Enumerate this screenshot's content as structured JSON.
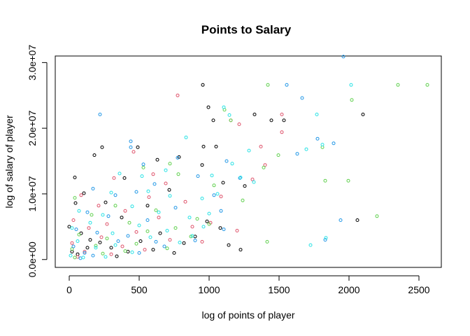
{
  "chart_data": {
    "type": "scatter",
    "title": "Points to Salary",
    "xlabel": "log of points of player",
    "ylabel": "log of salary of player",
    "xlim": [
      -100,
      2660
    ],
    "ylim": [
      -1200000,
      31000000
    ],
    "x_ticks": [
      0,
      500,
      1000,
      1500,
      2000,
      2500
    ],
    "x_tick_labels": [
      "0",
      "500",
      "1000",
      "1500",
      "2000",
      "2500"
    ],
    "y_ticks": [
      0,
      10000000,
      20000000,
      30000000
    ],
    "y_tick_labels": [
      "0.0e+00",
      "1.0e+07",
      "2.0e+07",
      "3.0e+07"
    ],
    "grid": false,
    "legend": "none",
    "point_colors": [
      "#000000",
      "#DF536B",
      "#61D04F",
      "#2297E6",
      "#28E2E5"
    ],
    "points": [
      [
        955,
        26600000,
        0
      ],
      [
        995,
        23200000,
        0
      ],
      [
        1030,
        21200000,
        0
      ],
      [
        1325,
        22100000,
        0
      ],
      [
        1445,
        21200000,
        0
      ],
      [
        1535,
        21200000,
        0
      ],
      [
        2100,
        22100000,
        0
      ],
      [
        235,
        17100000,
        0
      ],
      [
        180,
        15900000,
        0
      ],
      [
        490,
        17100000,
        0
      ],
      [
        960,
        17200000,
        0
      ],
      [
        1050,
        17200000,
        0
      ],
      [
        40,
        12500000,
        0
      ],
      [
        395,
        12400000,
        0
      ],
      [
        630,
        15200000,
        0
      ],
      [
        785,
        15600000,
        0
      ],
      [
        950,
        14400000,
        0
      ],
      [
        1100,
        11700000,
        0
      ],
      [
        1255,
        11200000,
        0
      ],
      [
        2060,
        6000000,
        0
      ],
      [
        45,
        8600000,
        0
      ],
      [
        105,
        10100000,
        0
      ],
      [
        260,
        8700000,
        0
      ],
      [
        375,
        6400000,
        0
      ],
      [
        560,
        8200000,
        0
      ],
      [
        715,
        10600000,
        0
      ],
      [
        1140,
        2200000,
        0
      ],
      [
        1225,
        1500000,
        0
      ],
      [
        0,
        5000000,
        0
      ],
      [
        85,
        4000000,
        0
      ],
      [
        150,
        3000000,
        0
      ],
      [
        220,
        2600000,
        0
      ],
      [
        300,
        1800000,
        0
      ],
      [
        420,
        1200000,
        0
      ],
      [
        600,
        1500000,
        0
      ],
      [
        750,
        1000000,
        0
      ],
      [
        900,
        3500000,
        0
      ],
      [
        20,
        1200000,
        0
      ],
      [
        60,
        800000,
        0
      ],
      [
        130,
        1800000,
        0
      ],
      [
        340,
        500000,
        0
      ],
      [
        510,
        2800000,
        0
      ],
      [
        650,
        4000000,
        0
      ],
      [
        820,
        2500000,
        0
      ],
      [
        985,
        5800000,
        0
      ],
      [
        1080,
        4800000,
        0
      ],
      [
        775,
        25000000,
        1
      ],
      [
        1215,
        20600000,
        1
      ],
      [
        1370,
        17200000,
        1
      ],
      [
        1520,
        22100000,
        1
      ],
      [
        1155,
        21200000,
        1
      ],
      [
        460,
        16400000,
        1
      ],
      [
        600,
        13000000,
        1
      ],
      [
        320,
        12400000,
        1
      ],
      [
        690,
        11600000,
        1
      ],
      [
        1085,
        9600000,
        1
      ],
      [
        1310,
        12200000,
        1
      ],
      [
        1400,
        14400000,
        1
      ],
      [
        1520,
        19400000,
        1
      ],
      [
        85,
        9800000,
        1
      ],
      [
        210,
        8200000,
        1
      ],
      [
        400,
        7400000,
        1
      ],
      [
        570,
        9500000,
        1
      ],
      [
        830,
        8800000,
        1
      ],
      [
        1010,
        5600000,
        1
      ],
      [
        1200,
        4400000,
        1
      ],
      [
        30,
        6000000,
        1
      ],
      [
        140,
        4800000,
        1
      ],
      [
        270,
        5400000,
        1
      ],
      [
        480,
        4200000,
        1
      ],
      [
        640,
        6400000,
        1
      ],
      [
        880,
        5000000,
        1
      ],
      [
        20,
        2500000,
        1
      ],
      [
        110,
        1200000,
        1
      ],
      [
        230,
        3400000,
        1
      ],
      [
        380,
        2000000,
        1
      ],
      [
        540,
        1500000,
        1
      ],
      [
        720,
        3000000,
        1
      ],
      [
        950,
        2700000,
        1
      ],
      [
        60,
        400000,
        1
      ],
      [
        300,
        800000,
        1
      ],
      [
        1420,
        26600000,
        2
      ],
      [
        2020,
        24300000,
        2
      ],
      [
        2350,
        26600000,
        2
      ],
      [
        2560,
        26600000,
        2
      ],
      [
        1110,
        22800000,
        2
      ],
      [
        1155,
        21200000,
        2
      ],
      [
        1390,
        14000000,
        2
      ],
      [
        1495,
        15900000,
        2
      ],
      [
        1810,
        17100000,
        2
      ],
      [
        1830,
        12000000,
        2
      ],
      [
        1995,
        12000000,
        2
      ],
      [
        2200,
        6600000,
        2
      ],
      [
        1415,
        2700000,
        2
      ],
      [
        1035,
        11300000,
        2
      ],
      [
        1240,
        9000000,
        2
      ],
      [
        720,
        14600000,
        2
      ],
      [
        530,
        14000000,
        2
      ],
      [
        780,
        13000000,
        2
      ],
      [
        40,
        9400000,
        2
      ],
      [
        330,
        8200000,
        2
      ],
      [
        620,
        7500000,
        2
      ],
      [
        915,
        6200000,
        2
      ],
      [
        1000,
        5400000,
        2
      ],
      [
        160,
        6800000,
        2
      ],
      [
        430,
        5600000,
        2
      ],
      [
        70,
        3800000,
        2
      ],
      [
        270,
        3200000,
        2
      ],
      [
        560,
        4300000,
        2
      ],
      [
        760,
        4800000,
        2
      ],
      [
        870,
        3500000,
        2
      ],
      [
        20,
        1600000,
        2
      ],
      [
        190,
        2100000,
        2
      ],
      [
        400,
        1300000,
        2
      ],
      [
        480,
        2400000,
        2
      ],
      [
        700,
        1700000,
        2
      ],
      [
        40,
        300000,
        2
      ],
      [
        240,
        900000,
        2
      ],
      [
        1960,
        30900000,
        3
      ],
      [
        1555,
        26600000,
        3
      ],
      [
        1665,
        24600000,
        3
      ],
      [
        220,
        22100000,
        3
      ],
      [
        1775,
        18400000,
        3
      ],
      [
        1890,
        17700000,
        3
      ],
      [
        440,
        18000000,
        3
      ],
      [
        1630,
        16100000,
        3
      ],
      [
        440,
        17100000,
        3
      ],
      [
        1125,
        15000000,
        3
      ],
      [
        530,
        14500000,
        3
      ],
      [
        775,
        15500000,
        3
      ],
      [
        920,
        12700000,
        3
      ],
      [
        610,
        11500000,
        3
      ],
      [
        170,
        10800000,
        3
      ],
      [
        480,
        10300000,
        3
      ],
      [
        330,
        9800000,
        3
      ],
      [
        1220,
        12400000,
        3
      ],
      [
        1035,
        9800000,
        3
      ],
      [
        1940,
        6000000,
        3
      ],
      [
        1830,
        3000000,
        3
      ],
      [
        1085,
        7400000,
        3
      ],
      [
        130,
        7200000,
        3
      ],
      [
        280,
        6600000,
        3
      ],
      [
        560,
        6000000,
        3
      ],
      [
        760,
        7900000,
        3
      ],
      [
        1105,
        4600000,
        3
      ],
      [
        50,
        4600000,
        3
      ],
      [
        200,
        4100000,
        3
      ],
      [
        420,
        3600000,
        3
      ],
      [
        620,
        2700000,
        3
      ],
      [
        900,
        2900000,
        3
      ],
      [
        30,
        2000000,
        3
      ],
      [
        110,
        1000000,
        3
      ],
      [
        350,
        2800000,
        3
      ],
      [
        500,
        1000000,
        3
      ],
      [
        680,
        2000000,
        3
      ],
      [
        80,
        200000,
        3
      ],
      [
        170,
        600000,
        3
      ],
      [
        1105,
        23200000,
        4
      ],
      [
        1145,
        22000000,
        4
      ],
      [
        2015,
        26600000,
        4
      ],
      [
        1770,
        22100000,
        4
      ],
      [
        1695,
        16800000,
        4
      ],
      [
        1285,
        16600000,
        4
      ],
      [
        1810,
        17500000,
        4
      ],
      [
        835,
        18600000,
        4
      ],
      [
        1225,
        12500000,
        4
      ],
      [
        1020,
        12800000,
        4
      ],
      [
        1165,
        14600000,
        4
      ],
      [
        1320,
        11800000,
        4
      ],
      [
        520,
        12700000,
        4
      ],
      [
        360,
        13100000,
        4
      ],
      [
        690,
        13600000,
        4
      ],
      [
        300,
        10200000,
        4
      ],
      [
        565,
        10400000,
        4
      ],
      [
        720,
        9700000,
        4
      ],
      [
        950,
        9300000,
        4
      ],
      [
        1060,
        10000000,
        4
      ],
      [
        1725,
        2200000,
        4
      ],
      [
        1835,
        3300000,
        4
      ],
      [
        70,
        7400000,
        4
      ],
      [
        240,
        6800000,
        4
      ],
      [
        450,
        8100000,
        4
      ],
      [
        640,
        7200000,
        4
      ],
      [
        860,
        6400000,
        4
      ],
      [
        1000,
        7000000,
        4
      ],
      [
        20,
        4800000,
        4
      ],
      [
        150,
        5600000,
        4
      ],
      [
        310,
        4000000,
        4
      ],
      [
        500,
        5200000,
        4
      ],
      [
        700,
        4400000,
        4
      ],
      [
        880,
        3600000,
        4
      ],
      [
        960,
        5000000,
        4
      ],
      [
        60,
        2800000,
        4
      ],
      [
        190,
        1800000,
        4
      ],
      [
        330,
        2200000,
        4
      ],
      [
        450,
        1100000,
        4
      ],
      [
        580,
        3400000,
        4
      ],
      [
        790,
        2600000,
        4
      ],
      [
        10,
        600000,
        4
      ],
      [
        100,
        300000,
        4
      ],
      [
        260,
        400000,
        4
      ]
    ]
  }
}
